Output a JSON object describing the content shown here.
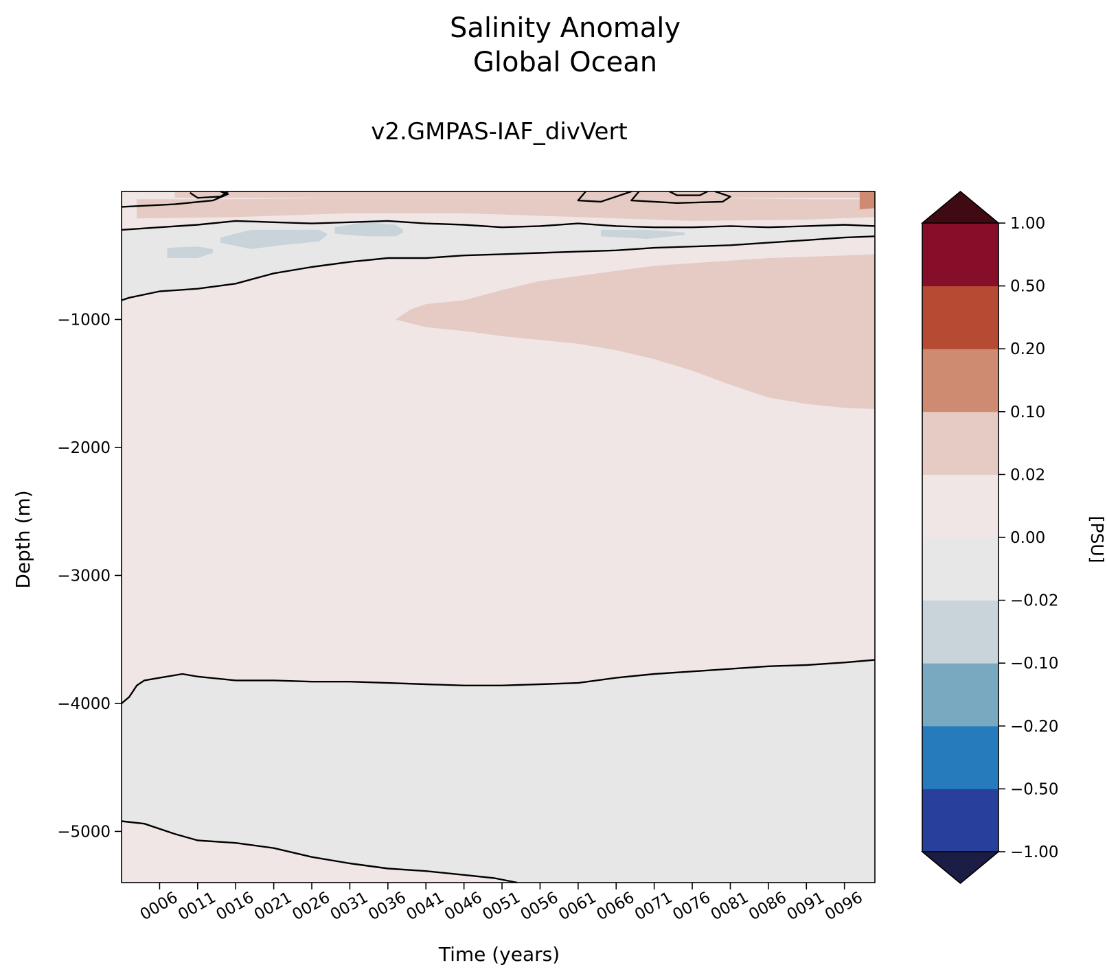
{
  "figure": {
    "title_line1": "Salinity Anomaly",
    "title_line2": "Global Ocean",
    "subtitle": "v2.GMPAS-IAF_divVert"
  },
  "chart_data": {
    "type": "heatmap",
    "title": "Salinity Anomaly Global Ocean",
    "subtitle": "v2.GMPAS-IAF_divVert",
    "xlabel": "Time (years)",
    "ylabel": "Depth (m)",
    "xlim": [
      1,
      100
    ],
    "ylim": [
      -5400,
      0
    ],
    "x_ticks": [
      6,
      11,
      16,
      21,
      26,
      31,
      36,
      41,
      46,
      51,
      56,
      61,
      66,
      71,
      76,
      81,
      86,
      91,
      96
    ],
    "x_tick_labels": [
      "0006",
      "0011",
      "0016",
      "0021",
      "0026",
      "0031",
      "0036",
      "0041",
      "0046",
      "0051",
      "0056",
      "0061",
      "0066",
      "0071",
      "0076",
      "0081",
      "0086",
      "0091",
      "0096"
    ],
    "y_ticks": [
      -1000,
      -2000,
      -3000,
      -4000,
      -5000
    ],
    "y_tick_labels": [
      "−1000",
      "−2000",
      "−3000",
      "−4000",
      "−5000"
    ],
    "colorbar": {
      "label": "[PSU]",
      "levels": [
        -1.0,
        -0.5,
        -0.2,
        -0.1,
        -0.02,
        0.0,
        0.02,
        0.1,
        0.2,
        0.5,
        1.0
      ],
      "tick_labels": [
        "−1.00",
        "−0.50",
        "−0.20",
        "−0.10",
        "−0.02",
        "0.00",
        "0.02",
        "0.10",
        "0.20",
        "0.50",
        "1.00"
      ],
      "colors": [
        "#283f9c",
        "#267bbd",
        "#78a9c0",
        "#c8d3da",
        "#e8e7e8",
        "#f0e6e5",
        "#e5cbc4",
        "#cf8b72",
        "#b64a32",
        "#870e28"
      ],
      "extend_min_color": "#1b1d45",
      "extend_max_color": "#3f0a12"
    },
    "regions": [
      {
        "range": "0.00 to 0.02",
        "color": "#f0e6e5",
        "description": "background"
      },
      {
        "range": "-0.02 to 0.00",
        "color": "#e8e7e8",
        "top": [
          [
            1,
            -300
          ],
          [
            6,
            -280
          ],
          [
            11,
            -260
          ],
          [
            16,
            -230
          ],
          [
            21,
            -240
          ],
          [
            26,
            -250
          ],
          [
            31,
            -240
          ],
          [
            36,
            -230
          ],
          [
            41,
            -250
          ],
          [
            46,
            -260
          ],
          [
            51,
            -280
          ],
          [
            56,
            -270
          ],
          [
            61,
            -250
          ],
          [
            66,
            -270
          ],
          [
            71,
            -280
          ],
          [
            76,
            -280
          ],
          [
            81,
            -270
          ],
          [
            86,
            -280
          ],
          [
            91,
            -270
          ],
          [
            96,
            -260
          ],
          [
            100,
            -270
          ]
        ],
        "bottom": [
          [
            1,
            -850
          ],
          [
            2,
            -830
          ],
          [
            6,
            -780
          ],
          [
            11,
            -760
          ],
          [
            16,
            -720
          ],
          [
            21,
            -640
          ],
          [
            26,
            -590
          ],
          [
            31,
            -550
          ],
          [
            36,
            -520
          ],
          [
            41,
            -520
          ],
          [
            46,
            -500
          ],
          [
            51,
            -490
          ],
          [
            56,
            -480
          ],
          [
            61,
            -470
          ],
          [
            66,
            -460
          ],
          [
            71,
            -440
          ],
          [
            76,
            -430
          ],
          [
            81,
            -420
          ],
          [
            86,
            -400
          ],
          [
            91,
            -380
          ],
          [
            96,
            -360
          ],
          [
            100,
            -350
          ]
        ]
      },
      {
        "range": "-0.02 to 0.00",
        "color": "#e8e7e8",
        "top": [
          [
            1,
            -4000
          ],
          [
            2,
            -3950
          ],
          [
            3,
            -3860
          ],
          [
            4,
            -3820
          ],
          [
            6,
            -3800
          ],
          [
            9,
            -3770
          ],
          [
            11,
            -3790
          ],
          [
            16,
            -3820
          ],
          [
            21,
            -3820
          ],
          [
            26,
            -3830
          ],
          [
            31,
            -3830
          ],
          [
            36,
            -3840
          ],
          [
            41,
            -3850
          ],
          [
            46,
            -3860
          ],
          [
            51,
            -3860
          ],
          [
            56,
            -3850
          ],
          [
            61,
            -3840
          ],
          [
            66,
            -3800
          ],
          [
            71,
            -3770
          ],
          [
            76,
            -3750
          ],
          [
            81,
            -3730
          ],
          [
            86,
            -3710
          ],
          [
            91,
            -3700
          ],
          [
            96,
            -3680
          ],
          [
            100,
            -3660
          ]
        ],
        "bottom": [
          [
            1,
            -4920
          ],
          [
            4,
            -4940
          ],
          [
            8,
            -5020
          ],
          [
            11,
            -5070
          ],
          [
            16,
            -5090
          ],
          [
            21,
            -5130
          ],
          [
            26,
            -5200
          ],
          [
            31,
            -5250
          ],
          [
            36,
            -5290
          ],
          [
            41,
            -5310
          ],
          [
            46,
            -5340
          ],
          [
            50,
            -5365
          ],
          [
            53,
            -5400
          ],
          [
            100,
            -5400
          ]
        ]
      },
      {
        "range": "0.02 to 0.10",
        "color": "#e5cbc4",
        "top": [
          [
            37,
            -1000
          ],
          [
            39,
            -920
          ],
          [
            41,
            -880
          ],
          [
            46,
            -850
          ],
          [
            51,
            -770
          ],
          [
            56,
            -700
          ],
          [
            61,
            -660
          ],
          [
            66,
            -620
          ],
          [
            71,
            -580
          ],
          [
            76,
            -560
          ],
          [
            81,
            -540
          ],
          [
            86,
            -520
          ],
          [
            91,
            -510
          ],
          [
            96,
            -500
          ],
          [
            100,
            -490
          ]
        ],
        "bottom": [
          [
            37,
            -1000
          ],
          [
            41,
            -1060
          ],
          [
            46,
            -1090
          ],
          [
            51,
            -1130
          ],
          [
            56,
            -1160
          ],
          [
            61,
            -1190
          ],
          [
            66,
            -1240
          ],
          [
            71,
            -1310
          ],
          [
            76,
            -1400
          ],
          [
            81,
            -1510
          ],
          [
            86,
            -1610
          ],
          [
            91,
            -1660
          ],
          [
            96,
            -1690
          ],
          [
            100,
            -1700
          ]
        ]
      },
      {
        "range": "0.02 to 0.10",
        "color": "#e5cbc4",
        "top": [
          [
            3,
            -60
          ],
          [
            16,
            -60
          ],
          [
            31,
            -50
          ],
          [
            46,
            -50
          ],
          [
            61,
            -50
          ],
          [
            76,
            -50
          ],
          [
            91,
            -60
          ],
          [
            100,
            -60
          ]
        ],
        "bottom": [
          [
            3,
            -210
          ],
          [
            16,
            -200
          ],
          [
            31,
            -170
          ],
          [
            46,
            -170
          ],
          [
            61,
            -200
          ],
          [
            76,
            -230
          ],
          [
            91,
            -220
          ],
          [
            100,
            -200
          ]
        ]
      },
      {
        "range": "0.02 to 0.10",
        "color": "#e5cbc4",
        "top": [
          [
            8,
            0
          ],
          [
            100,
            0
          ]
        ],
        "bottom": [
          [
            8,
            -50
          ],
          [
            100,
            -50
          ]
        ]
      },
      {
        "range": "-0.10 to -0.02",
        "color": "#c8d3da",
        "top": [
          [
            7,
            -440
          ],
          [
            11,
            -430
          ],
          [
            13,
            -450
          ]
        ],
        "bottom": [
          [
            7,
            -520
          ],
          [
            11,
            -520
          ],
          [
            13,
            -480
          ]
        ]
      },
      {
        "range": "-0.10 to -0.02",
        "color": "#c8d3da",
        "top": [
          [
            14,
            -360
          ],
          [
            18,
            -300
          ],
          [
            22,
            -300
          ],
          [
            27,
            -300
          ],
          [
            28,
            -330
          ]
        ],
        "bottom": [
          [
            14,
            -400
          ],
          [
            18,
            -450
          ],
          [
            22,
            -420
          ],
          [
            27,
            -390
          ],
          [
            28,
            -340
          ]
        ]
      },
      {
        "range": "-0.10 to -0.02",
        "color": "#c8d3da",
        "top": [
          [
            29,
            -280
          ],
          [
            33,
            -240
          ],
          [
            37,
            -260
          ],
          [
            38,
            -300
          ]
        ],
        "bottom": [
          [
            29,
            -330
          ],
          [
            33,
            -350
          ],
          [
            37,
            -350
          ],
          [
            38,
            -320
          ]
        ]
      },
      {
        "range": "-0.10 to -0.02",
        "color": "#c8d3da",
        "top": [
          [
            64,
            -300
          ],
          [
            70,
            -300
          ],
          [
            75,
            -320
          ]
        ],
        "bottom": [
          [
            64,
            -350
          ],
          [
            70,
            -370
          ],
          [
            75,
            -340
          ]
        ]
      },
      {
        "range": "0.10 to 0.20",
        "color": "#cf8b72",
        "top": [
          [
            98,
            0
          ],
          [
            100,
            0
          ]
        ],
        "bottom": [
          [
            98,
            -140
          ],
          [
            100,
            -130
          ]
        ]
      }
    ],
    "zero_contours": [
      {
        "points": [
          [
            1,
            -300
          ],
          [
            6,
            -280
          ],
          [
            11,
            -260
          ],
          [
            16,
            -230
          ],
          [
            21,
            -240
          ],
          [
            26,
            -250
          ],
          [
            31,
            -240
          ],
          [
            36,
            -230
          ],
          [
            41,
            -250
          ],
          [
            46,
            -260
          ],
          [
            51,
            -280
          ],
          [
            56,
            -270
          ],
          [
            61,
            -250
          ],
          [
            66,
            -270
          ],
          [
            71,
            -280
          ],
          [
            76,
            -280
          ],
          [
            81,
            -270
          ],
          [
            86,
            -280
          ],
          [
            91,
            -270
          ],
          [
            96,
            -260
          ],
          [
            100,
            -270
          ]
        ]
      },
      {
        "points": [
          [
            1,
            -850
          ],
          [
            2,
            -830
          ],
          [
            6,
            -780
          ],
          [
            11,
            -760
          ],
          [
            16,
            -720
          ],
          [
            21,
            -640
          ],
          [
            26,
            -590
          ],
          [
            31,
            -550
          ],
          [
            36,
            -520
          ],
          [
            41,
            -520
          ],
          [
            46,
            -500
          ],
          [
            51,
            -490
          ],
          [
            56,
            -480
          ],
          [
            61,
            -470
          ],
          [
            66,
            -460
          ],
          [
            71,
            -440
          ],
          [
            76,
            -430
          ],
          [
            81,
            -420
          ],
          [
            86,
            -400
          ],
          [
            91,
            -380
          ],
          [
            96,
            -360
          ],
          [
            100,
            -350
          ]
        ]
      },
      {
        "points": [
          [
            1,
            -4000
          ],
          [
            2,
            -3950
          ],
          [
            3,
            -3860
          ],
          [
            4,
            -3820
          ],
          [
            6,
            -3800
          ],
          [
            9,
            -3770
          ],
          [
            11,
            -3790
          ],
          [
            16,
            -3820
          ],
          [
            21,
            -3820
          ],
          [
            26,
            -3830
          ],
          [
            31,
            -3830
          ],
          [
            36,
            -3840
          ],
          [
            41,
            -3850
          ],
          [
            46,
            -3860
          ],
          [
            51,
            -3860
          ],
          [
            56,
            -3850
          ],
          [
            61,
            -3840
          ],
          [
            66,
            -3800
          ],
          [
            71,
            -3770
          ],
          [
            76,
            -3750
          ],
          [
            81,
            -3730
          ],
          [
            86,
            -3710
          ],
          [
            91,
            -3700
          ],
          [
            96,
            -3680
          ],
          [
            100,
            -3660
          ]
        ]
      },
      {
        "points": [
          [
            1,
            -4920
          ],
          [
            4,
            -4940
          ],
          [
            8,
            -5020
          ],
          [
            11,
            -5070
          ],
          [
            16,
            -5090
          ],
          [
            21,
            -5130
          ],
          [
            26,
            -5200
          ],
          [
            31,
            -5250
          ],
          [
            36,
            -5290
          ],
          [
            41,
            -5310
          ],
          [
            46,
            -5340
          ],
          [
            50,
            -5365
          ],
          [
            53,
            -5400
          ]
        ]
      },
      {
        "points": [
          [
            1,
            -120
          ],
          [
            8,
            -100
          ],
          [
            13,
            -70
          ],
          [
            15,
            -20
          ],
          [
            14,
            0
          ]
        ]
      },
      {
        "points": [
          [
            10,
            -10
          ],
          [
            11,
            -50
          ],
          [
            14,
            -40
          ],
          [
            15,
            0
          ]
        ]
      },
      {
        "points": [
          [
            62,
            0
          ],
          [
            61,
            -70
          ],
          [
            64,
            -80
          ],
          [
            67,
            -20
          ],
          [
            68,
            0
          ]
        ]
      },
      {
        "points": [
          [
            69,
            0
          ],
          [
            68,
            -70
          ],
          [
            74,
            -90
          ],
          [
            80,
            -80
          ],
          [
            81,
            -40
          ],
          [
            79,
            0
          ]
        ]
      },
      {
        "points": [
          [
            73,
            0
          ],
          [
            74,
            -30
          ],
          [
            77,
            -30
          ],
          [
            78,
            0
          ]
        ]
      }
    ]
  }
}
